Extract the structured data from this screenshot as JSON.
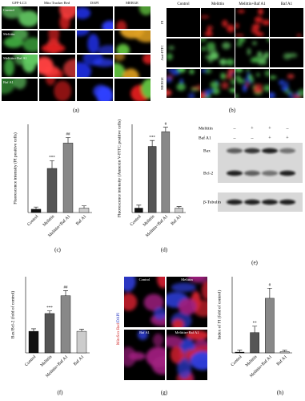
{
  "panel_a": {
    "label": "(a)",
    "columns": [
      "GFP-LC3",
      "Mito Tracker Red",
      "DAPI",
      "MERGE"
    ],
    "rows": [
      "Control",
      "Melittin",
      "Melittin+Baf A1",
      "Baf A1"
    ]
  },
  "panel_b": {
    "label": "(b)",
    "columns": [
      "Control",
      "Melittin",
      "Melittin+Baf A1",
      "Baf A1"
    ],
    "rows": [
      "PI",
      "Anti-FITC",
      "MERGE"
    ]
  },
  "panel_e": {
    "label": "(e)",
    "treatments": [
      {
        "name": "Melittin",
        "signs": [
          "–",
          "+",
          "+",
          "–"
        ]
      },
      {
        "name": "Baf A1",
        "signs": [
          "–",
          "–",
          "+",
          "+"
        ]
      }
    ],
    "bands": [
      "Bax",
      "Bcl-2",
      "β-Tubulin"
    ]
  },
  "panel_g": {
    "label": "(g)",
    "stain_red": "MitoSox Red",
    "stain_blue": "/DAPI",
    "images": [
      "Control",
      "Melittin",
      "Baf A1",
      "Melittin+Baf A1"
    ]
  },
  "chart_data": [
    {
      "type": "bar",
      "panel_label": "(c)",
      "ylabel": "Fluorescence intensity (PI positive cells)",
      "categories": [
        "Control",
        "Melittin",
        "Melittin+Baf A1",
        "Baf A1"
      ],
      "values": [
        3,
        40,
        63,
        4
      ],
      "errors": [
        2,
        7,
        5,
        2
      ],
      "annotations": [
        null,
        "***",
        "##",
        null
      ],
      "colors": [
        "#111111",
        "#555555",
        "#888888",
        "#cccccc"
      ],
      "ylim": [
        0,
        80
      ]
    },
    {
      "type": "bar",
      "panel_label": "(d)",
      "ylabel": "Fluorescence intensity (Annexin V-FITC positive cells)",
      "categories": [
        "Control",
        "Melittin",
        "Melittin+Baf A1",
        "Baf A1"
      ],
      "values": [
        3,
        45,
        55,
        3
      ],
      "errors": [
        2,
        4,
        3,
        1
      ],
      "annotations": [
        null,
        "***",
        "#",
        null
      ],
      "colors": [
        "#111111",
        "#555555",
        "#888888",
        "#cccccc"
      ],
      "ylim": [
        0,
        60
      ]
    },
    {
      "type": "bar",
      "panel_label": "(f)",
      "ylabel": "Bax/Bcl-2 (fold of control)",
      "categories": [
        "Control",
        "Melittin",
        "Melittin+Baf A1",
        "Baf A1"
      ],
      "values": [
        0.85,
        1.55,
        2.25,
        0.85
      ],
      "errors": [
        0.1,
        0.1,
        0.2,
        0.08
      ],
      "annotations": [
        null,
        "***",
        "##",
        null
      ],
      "colors": [
        "#111111",
        "#555555",
        "#888888",
        "#cccccc"
      ],
      "ylim": [
        0,
        3
      ]
    },
    {
      "type": "bar",
      "panel_label": "(h)",
      "ylabel": "Index of FI (fold of control)",
      "categories": [
        "Control",
        "Melittin",
        "Melittin+Baf A1",
        "Baf A1"
      ],
      "values": [
        3,
        80,
        215,
        5
      ],
      "errors": [
        8,
        25,
        40,
        5
      ],
      "annotations": [
        null,
        "**",
        "#",
        null
      ],
      "colors": [
        "#111111",
        "#555555",
        "#888888",
        "#cccccc"
      ],
      "ylim": [
        0,
        300
      ]
    }
  ]
}
